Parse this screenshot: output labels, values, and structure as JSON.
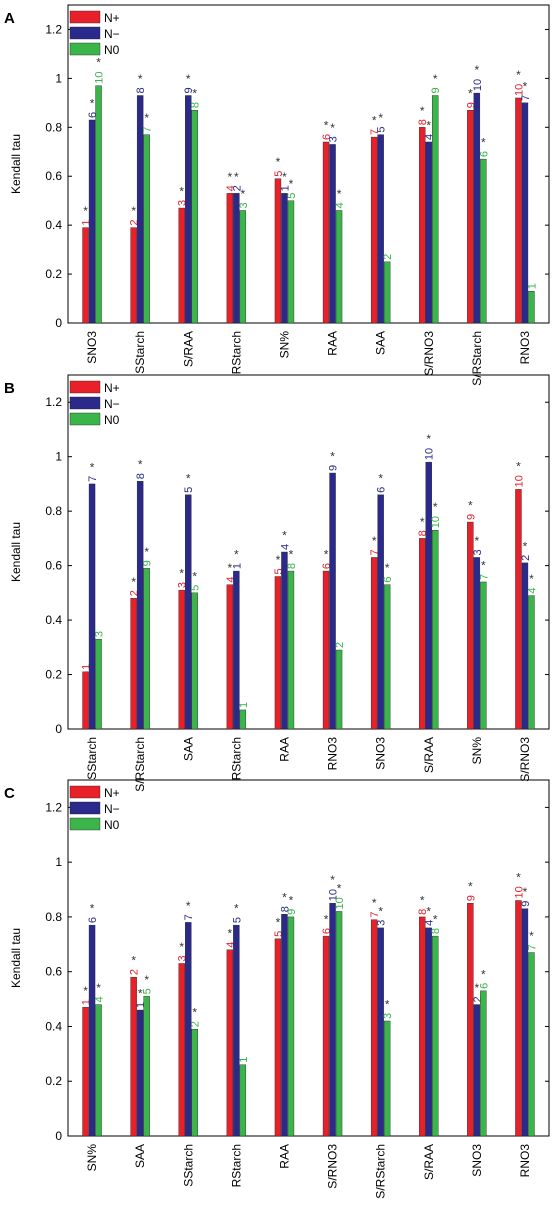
{
  "colors": {
    "N+": "#e8202a",
    "N-": "#2a2a8c",
    "N0": "#3bb44a",
    "star": "#333333"
  },
  "chart_data": [
    {
      "type": "bar",
      "panel_label": "A",
      "ylabel": "Kendall tau",
      "ylim": [
        0,
        1.3
      ],
      "yticks": [
        "0",
        "0.2",
        "0.4",
        "0.6",
        "0.8",
        "1",
        "1.2"
      ],
      "legend": [
        "N+",
        "N−",
        "N0"
      ],
      "legend_position": "top-left",
      "categories": [
        "SNO3",
        "SStarch",
        "S/RAA",
        "RStarch",
        "SN%",
        "RAA",
        "SAA",
        "S/RNO3",
        "S/RStarch",
        "RNO3"
      ],
      "series": [
        {
          "name": "N+",
          "color_key": "N+",
          "values": [
            0.39,
            0.39,
            0.47,
            0.53,
            0.59,
            0.74,
            0.76,
            0.8,
            0.87,
            0.92
          ],
          "ranks": [
            "1",
            "2",
            "3",
            "4",
            "5",
            "6",
            "7",
            "8",
            "9",
            "10"
          ],
          "sig": [
            true,
            true,
            true,
            true,
            true,
            true,
            true,
            true,
            true,
            true
          ]
        },
        {
          "name": "N−",
          "color_key": "N-",
          "values": [
            0.83,
            0.93,
            0.93,
            0.53,
            0.53,
            0.73,
            0.77,
            0.74,
            0.94,
            0.9
          ],
          "ranks": [
            "6",
            "8",
            "9",
            "2",
            "1",
            "3",
            "5",
            "4",
            "10",
            "7"
          ],
          "sig": [
            true,
            true,
            true,
            true,
            true,
            true,
            true,
            true,
            true,
            true
          ]
        },
        {
          "name": "N0",
          "color_key": "N0",
          "values": [
            0.97,
            0.77,
            0.87,
            0.46,
            0.5,
            0.46,
            0.25,
            0.93,
            0.67,
            0.13
          ],
          "ranks": [
            "10",
            "7",
            "8",
            "3",
            "5",
            "4",
            "2",
            "9",
            "6",
            "1"
          ],
          "sig": [
            true,
            true,
            true,
            true,
            true,
            true,
            false,
            true,
            true,
            false
          ]
        }
      ]
    },
    {
      "type": "bar",
      "panel_label": "B",
      "ylabel": "Kendall tau",
      "ylim": [
        0,
        1.3
      ],
      "yticks": [
        "0",
        "0.2",
        "0.4",
        "0.6",
        "0.8",
        "1",
        "1.2"
      ],
      "legend": [
        "N+",
        "N−",
        "N0"
      ],
      "legend_position": "top-left",
      "categories": [
        "SStarch",
        "S/RStarch",
        "SAA",
        "RStarch",
        "RAA",
        "RNO3",
        "SNO3",
        "S/RAA",
        "SN%",
        "S/RNO3"
      ],
      "series": [
        {
          "name": "N+",
          "color_key": "N+",
          "values": [
            0.21,
            0.48,
            0.51,
            0.53,
            0.56,
            0.58,
            0.63,
            0.7,
            0.76,
            0.88
          ],
          "ranks": [
            "1",
            "2",
            "3",
            "4",
            "5",
            "6",
            "7",
            "8",
            "9",
            "10"
          ],
          "sig": [
            false,
            true,
            true,
            true,
            true,
            true,
            true,
            true,
            true,
            true
          ]
        },
        {
          "name": "N−",
          "color_key": "N-",
          "values": [
            0.9,
            0.91,
            0.86,
            0.58,
            0.65,
            0.94,
            0.86,
            0.98,
            0.63,
            0.61
          ],
          "ranks": [
            "7",
            "8",
            "5",
            "1",
            "4",
            "9",
            "6",
            "10",
            "3",
            "2"
          ],
          "sig": [
            true,
            true,
            true,
            true,
            true,
            true,
            true,
            true,
            true,
            true
          ]
        },
        {
          "name": "N0",
          "color_key": "N0",
          "values": [
            0.33,
            0.59,
            0.5,
            0.07,
            0.58,
            0.29,
            0.53,
            0.73,
            0.54,
            0.49
          ],
          "ranks": [
            "3",
            "9",
            "5",
            "1",
            "8",
            "2",
            "6",
            "10",
            "7",
            "4"
          ],
          "sig": [
            false,
            true,
            true,
            false,
            true,
            false,
            true,
            true,
            true,
            true
          ]
        }
      ]
    },
    {
      "type": "bar",
      "panel_label": "C",
      "ylabel": "Kendall tau",
      "ylim": [
        0,
        1.3
      ],
      "yticks": [
        "0",
        "0.2",
        "0.4",
        "0.6",
        "0.8",
        "1",
        "1.2"
      ],
      "legend": [
        "N+",
        "N−",
        "N0"
      ],
      "legend_position": "top-left",
      "categories": [
        "SN%",
        "SAA",
        "SStarch",
        "RStarch",
        "RAA",
        "S/RNO3",
        "S/RStarch",
        "S/RAA",
        "SNO3",
        "RNO3"
      ],
      "series": [
        {
          "name": "N+",
          "color_key": "N+",
          "values": [
            0.47,
            0.58,
            0.63,
            0.68,
            0.72,
            0.73,
            0.79,
            0.8,
            0.85,
            0.86
          ],
          "ranks": [
            "1",
            "2",
            "3",
            "4",
            "5",
            "6",
            "7",
            "8",
            "9",
            "10"
          ],
          "sig": [
            true,
            true,
            true,
            true,
            true,
            true,
            true,
            true,
            true,
            true
          ]
        },
        {
          "name": "N−",
          "color_key": "N-",
          "values": [
            0.77,
            0.46,
            0.78,
            0.77,
            0.81,
            0.85,
            0.76,
            0.76,
            0.48,
            0.83
          ],
          "ranks": [
            "6",
            "1",
            "7",
            "5",
            "8",
            "10",
            "3",
            "4",
            "2",
            "9"
          ],
          "sig": [
            true,
            true,
            true,
            true,
            true,
            true,
            true,
            true,
            true,
            true
          ]
        },
        {
          "name": "N0",
          "color_key": "N0",
          "values": [
            0.48,
            0.51,
            0.39,
            0.26,
            0.8,
            0.82,
            0.42,
            0.73,
            0.53,
            0.67
          ],
          "ranks": [
            "4",
            "5",
            "2",
            "1",
            "9",
            "10",
            "3",
            "8",
            "6",
            "7"
          ],
          "sig": [
            true,
            true,
            true,
            false,
            true,
            true,
            true,
            true,
            true,
            true
          ]
        }
      ]
    }
  ]
}
